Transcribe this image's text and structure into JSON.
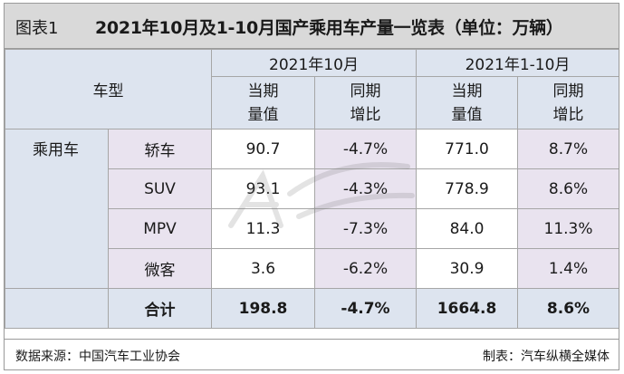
{
  "title": {
    "label": "图表1",
    "text": "2021年10月及1-10月国产乘用车产量一览表（单位：万辆）"
  },
  "table": {
    "model_header": "车型",
    "periods": [
      "2021年10月",
      "2021年1-10月"
    ],
    "sub_headers": [
      [
        "当期",
        "量值"
      ],
      [
        "同期",
        "增比"
      ],
      [
        "当期",
        "量值"
      ],
      [
        "同期",
        "增比"
      ]
    ],
    "category": "乘用车",
    "rows": [
      {
        "type": "轿车",
        "oct_value": "90.7",
        "oct_yoy": "-4.7%",
        "ytd_value": "771.0",
        "ytd_yoy": "8.7%"
      },
      {
        "type": "SUV",
        "oct_value": "93.1",
        "oct_yoy": "-4.3%",
        "ytd_value": "778.9",
        "ytd_yoy": "8.6%"
      },
      {
        "type": "MPV",
        "oct_value": "11.3",
        "oct_yoy": "-7.3%",
        "ytd_value": "84.0",
        "ytd_yoy": "11.3%"
      },
      {
        "type": "微客",
        "oct_value": "3.6",
        "oct_yoy": "-6.2%",
        "ytd_value": "30.9",
        "ytd_yoy": "1.4%"
      }
    ],
    "total": {
      "label": "合计",
      "oct_value": "198.8",
      "oct_yoy": "-4.7%",
      "ytd_value": "1664.8",
      "ytd_yoy": "8.6%"
    }
  },
  "footer": {
    "source": "数据来源：中国汽车工业协会",
    "made_by": "制表：汽车纵横全媒体"
  },
  "watermark": {
    "icon": "auto-logo-watermark-icon"
  }
}
